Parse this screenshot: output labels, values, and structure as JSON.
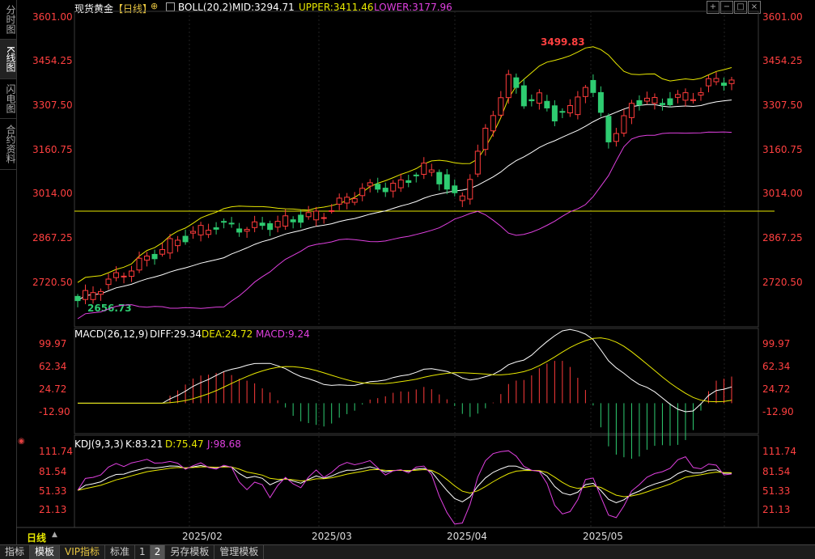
{
  "sidebar": {
    "tabs": [
      {
        "label": "分时图",
        "active": false
      },
      {
        "label": "K线图",
        "active": true
      },
      {
        "label": "闪电图",
        "active": false
      },
      {
        "label": "合约资料",
        "active": false
      }
    ]
  },
  "header": {
    "title": "现货黄金",
    "period": "【日线】",
    "indicator": "BOLL(20,2)",
    "mid": "MID:3294.71",
    "upper": "UPPER:3411.46",
    "lower": "LOWER:3177.96"
  },
  "price_panel": {
    "ticks": [
      "3601.00",
      "3454.25",
      "3307.50",
      "3160.75",
      "3014.00",
      "2867.25",
      "2720.50"
    ],
    "high_label": "3499.83",
    "low_label": "2656.73"
  },
  "macd_panel": {
    "title": "MACD(26,12,9)",
    "diff": "DIFF:29.34",
    "dea": "DEA:24.72",
    "macd": "MACD:9.24",
    "ticks": [
      "99.97",
      "62.34",
      "24.72",
      "-12.90"
    ]
  },
  "kdj_panel": {
    "title": "KDJ(9,3,3)",
    "k": "K:83.21",
    "d": "D:75.47",
    "j": "J:98.68",
    "ticks": [
      "111.74",
      "81.54",
      "51.33",
      "21.13"
    ]
  },
  "x_axis": {
    "period_label": "日线",
    "dates": [
      "2025/02",
      "2025/03",
      "2025/04",
      "2025/05"
    ]
  },
  "bottom_tabs": [
    {
      "label": "指标",
      "active": false
    },
    {
      "label": "模板",
      "active": true
    },
    {
      "label": "VIP指标",
      "active": false
    },
    {
      "label": "标准",
      "active": false
    },
    {
      "label": "1",
      "active": false
    },
    {
      "label": "2",
      "active": true
    },
    {
      "label": "另存模板",
      "active": false
    },
    {
      "label": "管理模板",
      "active": false
    }
  ],
  "colors": {
    "up": "#ff3b3b",
    "down": "#2ecc71",
    "mid": "#ffffff",
    "upper": "#e8e800",
    "lower": "#e040e0",
    "axis_text": "#ff4040",
    "support_line": "#e8e800"
  },
  "icons": [
    "settings-icon",
    "zoom-in-icon",
    "zoom-out-icon",
    "fit-icon",
    "close-icon"
  ]
}
